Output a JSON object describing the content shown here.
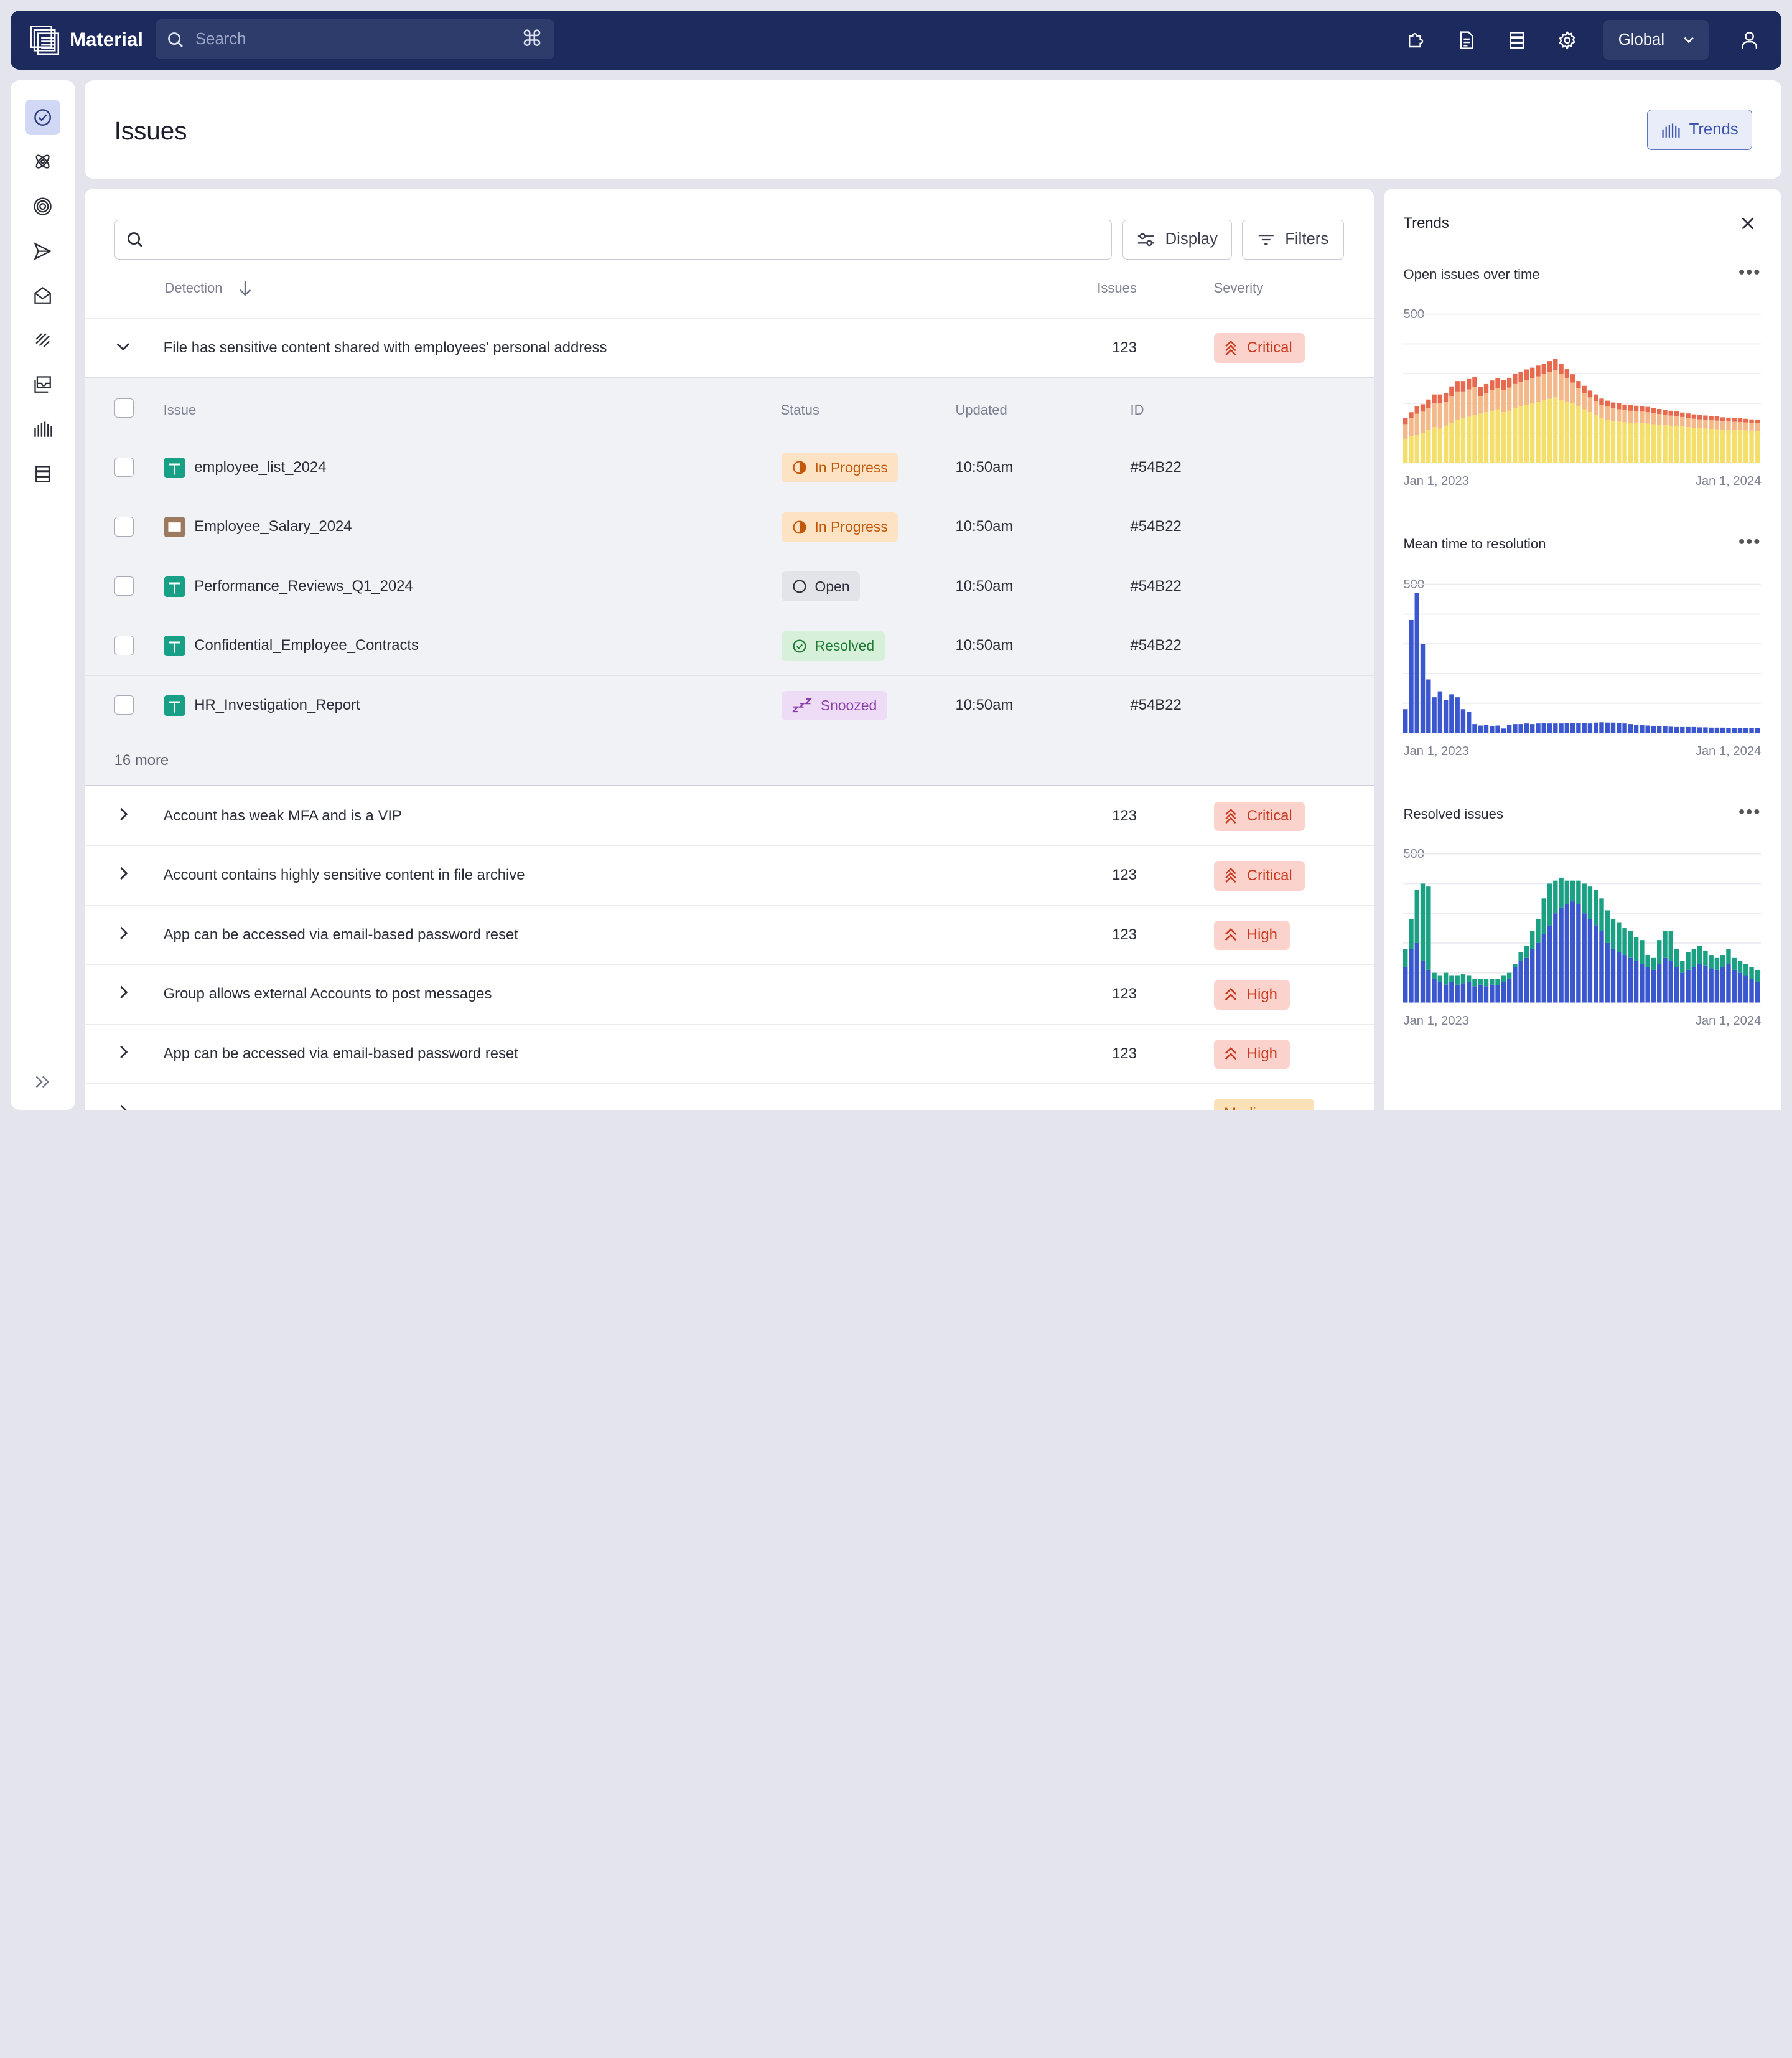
{
  "app": {
    "name": "Material"
  },
  "topbar": {
    "search_placeholder": "Search",
    "shortcut": "⌘",
    "icons": [
      "puzzle-icon",
      "document-icon",
      "layers-icon",
      "gear-icon"
    ],
    "scope_label": "Global",
    "user_icon": "user-icon"
  },
  "sidebar": {
    "items": [
      {
        "icon": "check-circle-icon",
        "active": true
      },
      {
        "icon": "atom-icon",
        "active": false
      },
      {
        "icon": "target-icon",
        "active": false
      },
      {
        "icon": "send-icon",
        "active": false
      },
      {
        "icon": "mail-icon",
        "active": false
      },
      {
        "icon": "strokes-icon",
        "active": false
      },
      {
        "icon": "inbox-stack-icon",
        "active": false
      },
      {
        "icon": "bars-icon",
        "active": false
      },
      {
        "icon": "layout-icon",
        "active": false
      }
    ],
    "expand_icon": "double-chevron-right-icon"
  },
  "header": {
    "title": "Issues",
    "trends_button": "Trends"
  },
  "list": {
    "search_value": "",
    "display_button": "Display",
    "filters_button": "Filters",
    "columns": {
      "detection": "Detection",
      "issues": "Issues",
      "severity": "Severity"
    },
    "expanded_group": {
      "title": "File has sensitive content shared with employees' personal address",
      "count": "123",
      "severity": "Critical"
    },
    "subcolumns": {
      "issue": "Issue",
      "status": "Status",
      "updated": "Updated",
      "id": "ID"
    },
    "subrows": [
      {
        "name": "employee_list_2024",
        "file_type": "sheet",
        "status": "In Progress",
        "updated": "10:50am",
        "id": "#54B22"
      },
      {
        "name": "Employee_Salary_2024",
        "file_type": "slides",
        "status": "In Progress",
        "updated": "10:50am",
        "id": "#54B22"
      },
      {
        "name": "Performance_Reviews_Q1_2024",
        "file_type": "sheet",
        "status": "Open",
        "updated": "10:50am",
        "id": "#54B22"
      },
      {
        "name": "Confidential_Employee_Contracts",
        "file_type": "sheet",
        "status": "Resolved",
        "updated": "10:50am",
        "id": "#54B22"
      },
      {
        "name": "HR_Investigation_Report",
        "file_type": "sheet",
        "status": "Snoozed",
        "updated": "10:50am",
        "id": "#54B22"
      }
    ],
    "more_label": "16 more",
    "groups": [
      {
        "title": "Account has weak MFA and is a VIP",
        "count": "123",
        "severity": "Critical"
      },
      {
        "title": "Account contains highly sensitive content in file archive",
        "count": "123",
        "severity": "Critical"
      },
      {
        "title": "App can be accessed via email-based password reset",
        "count": "123",
        "severity": "High"
      },
      {
        "title": "Group allows external Accounts to post messages",
        "count": "123",
        "severity": "High"
      },
      {
        "title": "App can be accessed via email-based password reset",
        "count": "123",
        "severity": "High"
      },
      {
        "title": "",
        "count": "",
        "severity": "Medium"
      }
    ]
  },
  "colors": {
    "topbar": "#1c2a5e",
    "accent": "#3c55ad",
    "critical": "#c8391f",
    "progress": "#c2570a",
    "resolved": "#1f7a35",
    "snoozed": "#8b3fa8",
    "sheet_icon": "#17a085",
    "slides_icon": "#9c7a60",
    "chart_blue": "#3b57d0",
    "chart_green": "#1aa083"
  },
  "trends": {
    "title": "Trends",
    "close_icon": "close-icon"
  },
  "chart_data": [
    {
      "type": "bar",
      "stacked": true,
      "title": "Open issues over time",
      "y_tick": "500",
      "ylim": [
        0,
        500
      ],
      "x_labels": [
        "Jan 1, 2023",
        "Jan 1, 2024"
      ],
      "grid": true,
      "series": [
        {
          "color": "#f4df6a",
          "values": [
            80,
            90,
            95,
            100,
            110,
            120,
            115,
            125,
            135,
            145,
            150,
            155,
            160,
            165,
            170,
            175,
            180,
            170,
            175,
            185,
            190,
            195,
            200,
            205,
            210,
            215,
            220,
            210,
            205,
            200,
            190,
            180,
            170,
            160,
            150,
            145,
            140,
            138,
            136,
            135,
            134,
            133,
            132,
            130,
            128,
            126,
            125,
            124,
            122,
            120,
            118,
            116,
            115,
            114,
            113,
            112,
            111,
            110,
            110,
            109,
            108,
            107
          ]
        },
        {
          "color": "#f3b98a",
          "values": [
            50,
            60,
            70,
            72,
            75,
            80,
            85,
            80,
            90,
            95,
            90,
            92,
            95,
            60,
            65,
            70,
            72,
            75,
            78,
            80,
            82,
            84,
            85,
            86,
            88,
            90,
            92,
            88,
            80,
            70,
            60,
            55,
            50,
            48,
            45,
            44,
            43,
            42,
            41,
            40,
            40,
            39,
            38,
            37,
            36,
            35,
            34,
            33,
            32,
            31,
            30,
            30,
            30,
            29,
            29,
            28,
            28,
            28,
            27,
            27,
            26,
            26
          ]
        },
        {
          "color": "#e86a4e",
          "values": [
            20,
            20,
            25,
            25,
            28,
            30,
            30,
            30,
            32,
            35,
            35,
            35,
            35,
            30,
            30,
            32,
            32,
            33,
            33,
            34,
            34,
            35,
            35,
            36,
            36,
            37,
            37,
            35,
            32,
            28,
            25,
            24,
            23,
            22,
            21,
            20,
            20,
            20,
            19,
            19,
            18,
            18,
            18,
            17,
            17,
            16,
            16,
            16,
            15,
            15,
            15,
            15,
            14,
            14,
            14,
            13,
            13,
            13,
            13,
            12,
            12,
            12
          ]
        }
      ]
    },
    {
      "type": "bar",
      "title": "Mean time to resolution",
      "y_tick": "500",
      "ylim": [
        0,
        500
      ],
      "x_labels": [
        "Jan 1, 2023",
        "Jan 1, 2024"
      ],
      "grid": true,
      "series": [
        {
          "color": "#3b57d0",
          "values": [
            80,
            380,
            470,
            300,
            180,
            120,
            140,
            110,
            130,
            120,
            80,
            70,
            30,
            25,
            28,
            22,
            25,
            15,
            28,
            30,
            30,
            32,
            30,
            32,
            33,
            32,
            32,
            32,
            33,
            34,
            33,
            34,
            32,
            35,
            36,
            35,
            35,
            33,
            32,
            30,
            28,
            26,
            25,
            24,
            22,
            22,
            21,
            20,
            20,
            20,
            20,
            19,
            19,
            18,
            18,
            18,
            17,
            17,
            17,
            16,
            16,
            16
          ]
        }
      ]
    },
    {
      "type": "bar",
      "stacked": true,
      "title": "Resolved issues",
      "y_tick": "500",
      "ylim": [
        0,
        500
      ],
      "x_labels": [
        "Jan 1, 2023",
        "Jan 1, 2024"
      ],
      "grid": true,
      "series": [
        {
          "color": "#3b57d0",
          "values": [
            120,
            180,
            200,
            140,
            110,
            80,
            70,
            60,
            70,
            60,
            65,
            70,
            55,
            60,
            55,
            60,
            58,
            70,
            80,
            120,
            140,
            150,
            180,
            200,
            230,
            260,
            300,
            320,
            330,
            340,
            330,
            300,
            280,
            260,
            240,
            200,
            180,
            170,
            160,
            150,
            140,
            130,
            120,
            110,
            130,
            150,
            140,
            120,
            100,
            110,
            120,
            130,
            125,
            115,
            110,
            120,
            130,
            110,
            100,
            90,
            80,
            70
          ]
        },
        {
          "color": "#1aa083",
          "values": [
            60,
            100,
            180,
            260,
            280,
            20,
            20,
            40,
            20,
            30,
            30,
            20,
            25,
            20,
            25,
            20,
            22,
            20,
            20,
            10,
            30,
            40,
            60,
            80,
            120,
            140,
            110,
            100,
            80,
            70,
            80,
            100,
            110,
            120,
            110,
            110,
            100,
            100,
            90,
            90,
            80,
            80,
            40,
            40,
            80,
            90,
            100,
            60,
            40,
            60,
            60,
            60,
            50,
            45,
            40,
            40,
            50,
            40,
            40,
            40,
            40,
            40
          ]
        }
      ]
    }
  ]
}
